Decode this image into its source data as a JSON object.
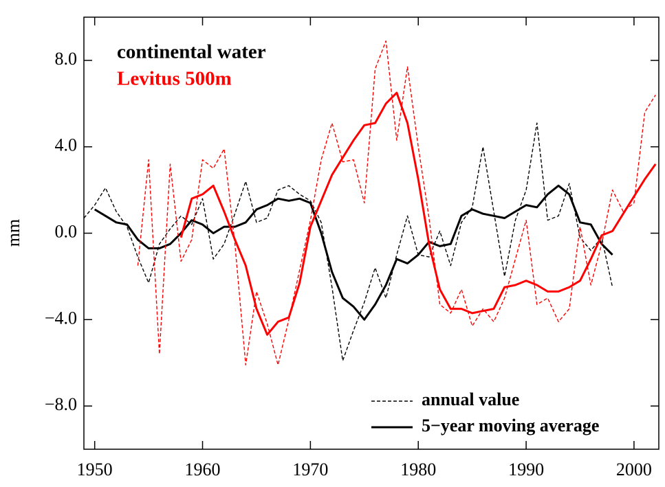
{
  "chart_data": {
    "type": "line",
    "y_label": "mm",
    "xlim": [
      1949,
      2002.3
    ],
    "ylim": [
      -10,
      10
    ],
    "xticks": [
      1950,
      1960,
      1970,
      1980,
      1990,
      2000
    ],
    "yticks": [
      {
        "value": -8,
        "label": "−8.0"
      },
      {
        "value": -4,
        "label": "−4.0"
      },
      {
        "value": 0,
        "label": "0.0"
      },
      {
        "value": 4,
        "label": "4.0"
      },
      {
        "value": 8,
        "label": "8.0"
      }
    ],
    "styles": {
      "annual": {
        "name": "annual value",
        "dashed": true
      },
      "moving_average": {
        "name": "5−year moving average",
        "dashed": false
      }
    },
    "groups": [
      {
        "name": "continental water",
        "color": "#000000",
        "annual": {
          "x": [
            1949,
            1950,
            1951,
            1952,
            1953,
            1954,
            1955,
            1956,
            1957,
            1958,
            1959,
            1960,
            1961,
            1962,
            1963,
            1964,
            1965,
            1966,
            1967,
            1968,
            1969,
            1970,
            1971,
            1972,
            1973,
            1974,
            1975,
            1976,
            1977,
            1978,
            1979,
            1980,
            1981,
            1982,
            1983,
            1984,
            1985,
            1986,
            1987,
            1988,
            1989,
            1990,
            1991,
            1992,
            1993,
            1994,
            1995,
            1996,
            1997,
            1998
          ],
          "values": [
            0.7,
            1.3,
            2.1,
            1.0,
            0.3,
            -1.1,
            -2.3,
            -0.5,
            0.2,
            0.8,
            0.4,
            1.6,
            -1.2,
            -0.5,
            0.9,
            2.4,
            0.5,
            0.7,
            2.0,
            2.2,
            1.8,
            1.5,
            0.5,
            -2.5,
            -5.9,
            -4.5,
            -3.2,
            -1.6,
            -3.0,
            -1.0,
            0.8,
            -1.0,
            -1.1,
            0.1,
            -1.5,
            0.5,
            1.2,
            4.0,
            1.0,
            -2.0,
            0.6,
            2.0,
            5.1,
            0.6,
            0.8,
            2.3,
            -0.2,
            -0.8,
            -0.2,
            -2.5
          ]
        },
        "moving_average": {
          "x": [
            1950,
            1951,
            1952,
            1953,
            1954,
            1955,
            1956,
            1957,
            1958,
            1959,
            1960,
            1961,
            1962,
            1963,
            1964,
            1965,
            1966,
            1967,
            1968,
            1969,
            1970,
            1971,
            1972,
            1973,
            1974,
            1975,
            1976,
            1977,
            1978,
            1979,
            1980,
            1981,
            1982,
            1983,
            1984,
            1985,
            1986,
            1987,
            1988,
            1989,
            1990,
            1991,
            1992,
            1993,
            1994,
            1995,
            1996,
            1997,
            1998
          ],
          "values": [
            1.1,
            0.8,
            0.5,
            0.4,
            -0.3,
            -0.7,
            -0.7,
            -0.5,
            0.0,
            0.6,
            0.4,
            0.0,
            0.3,
            0.3,
            0.5,
            1.1,
            1.3,
            1.6,
            1.5,
            1.6,
            1.4,
            0.0,
            -1.8,
            -3.0,
            -3.4,
            -4.0,
            -3.3,
            -2.4,
            -1.2,
            -1.4,
            -1.0,
            -0.4,
            -0.6,
            -0.5,
            0.8,
            1.1,
            0.9,
            0.8,
            0.7,
            1.0,
            1.3,
            1.2,
            1.8,
            2.2,
            1.8,
            0.5,
            0.4,
            -0.5,
            -1.0
          ]
        }
      },
      {
        "name": "Levitus 500m",
        "color": "#ff0000",
        "annual": {
          "x": [
            1954,
            1955,
            1956,
            1957,
            1958,
            1959,
            1960,
            1961,
            1962,
            1963,
            1964,
            1965,
            1966,
            1967,
            1968,
            1969,
            1970,
            1971,
            1972,
            1973,
            1974,
            1975,
            1976,
            1977,
            1978,
            1979,
            1980,
            1981,
            1982,
            1983,
            1984,
            1985,
            1986,
            1987,
            1988,
            1989,
            1990,
            1991,
            1992,
            1993,
            1994,
            1995,
            1996,
            1997,
            1998,
            1999,
            2000,
            2001,
            2002
          ],
          "values": [
            -1.5,
            3.4,
            -5.6,
            3.2,
            -1.3,
            -0.3,
            3.4,
            3.0,
            3.9,
            -0.5,
            -6.1,
            -2.7,
            -4.2,
            -6.1,
            -4.0,
            -1.7,
            0.6,
            3.4,
            5.1,
            3.3,
            3.4,
            1.4,
            7.6,
            8.9,
            4.3,
            7.7,
            4.0,
            0.7,
            -3.3,
            -3.7,
            -2.6,
            -4.3,
            -3.5,
            -4.1,
            -3.0,
            -1.2,
            0.6,
            -3.3,
            -3.0,
            -4.1,
            -3.5,
            0.3,
            -2.4,
            -0.5,
            2.0,
            1.0,
            1.4,
            5.6,
            6.4
          ]
        },
        "moving_average": {
          "x": [
            1958,
            1959,
            1960,
            1961,
            1962,
            1963,
            1964,
            1965,
            1966,
            1967,
            1968,
            1969,
            1970,
            1971,
            1972,
            1973,
            1974,
            1975,
            1976,
            1977,
            1978,
            1979,
            1980,
            1981,
            1982,
            1983,
            1984,
            1985,
            1986,
            1987,
            1988,
            1989,
            1990,
            1991,
            1992,
            1993,
            1994,
            1995,
            1996,
            1997,
            1998,
            1999,
            2000,
            2001,
            2002
          ],
          "values": [
            -0.2,
            1.6,
            1.8,
            2.2,
            1.0,
            -0.3,
            -1.5,
            -3.5,
            -4.7,
            -4.1,
            -3.9,
            -2.3,
            0.3,
            1.5,
            2.7,
            3.5,
            4.3,
            5.0,
            5.1,
            6.0,
            6.5,
            5.1,
            2.5,
            -0.5,
            -2.6,
            -3.5,
            -3.5,
            -3.7,
            -3.6,
            -3.5,
            -2.5,
            -2.4,
            -2.2,
            -2.4,
            -2.7,
            -2.7,
            -2.5,
            -2.2,
            -1.2,
            -0.1,
            0.1,
            0.9,
            1.7,
            2.5,
            3.2
          ]
        }
      }
    ]
  }
}
